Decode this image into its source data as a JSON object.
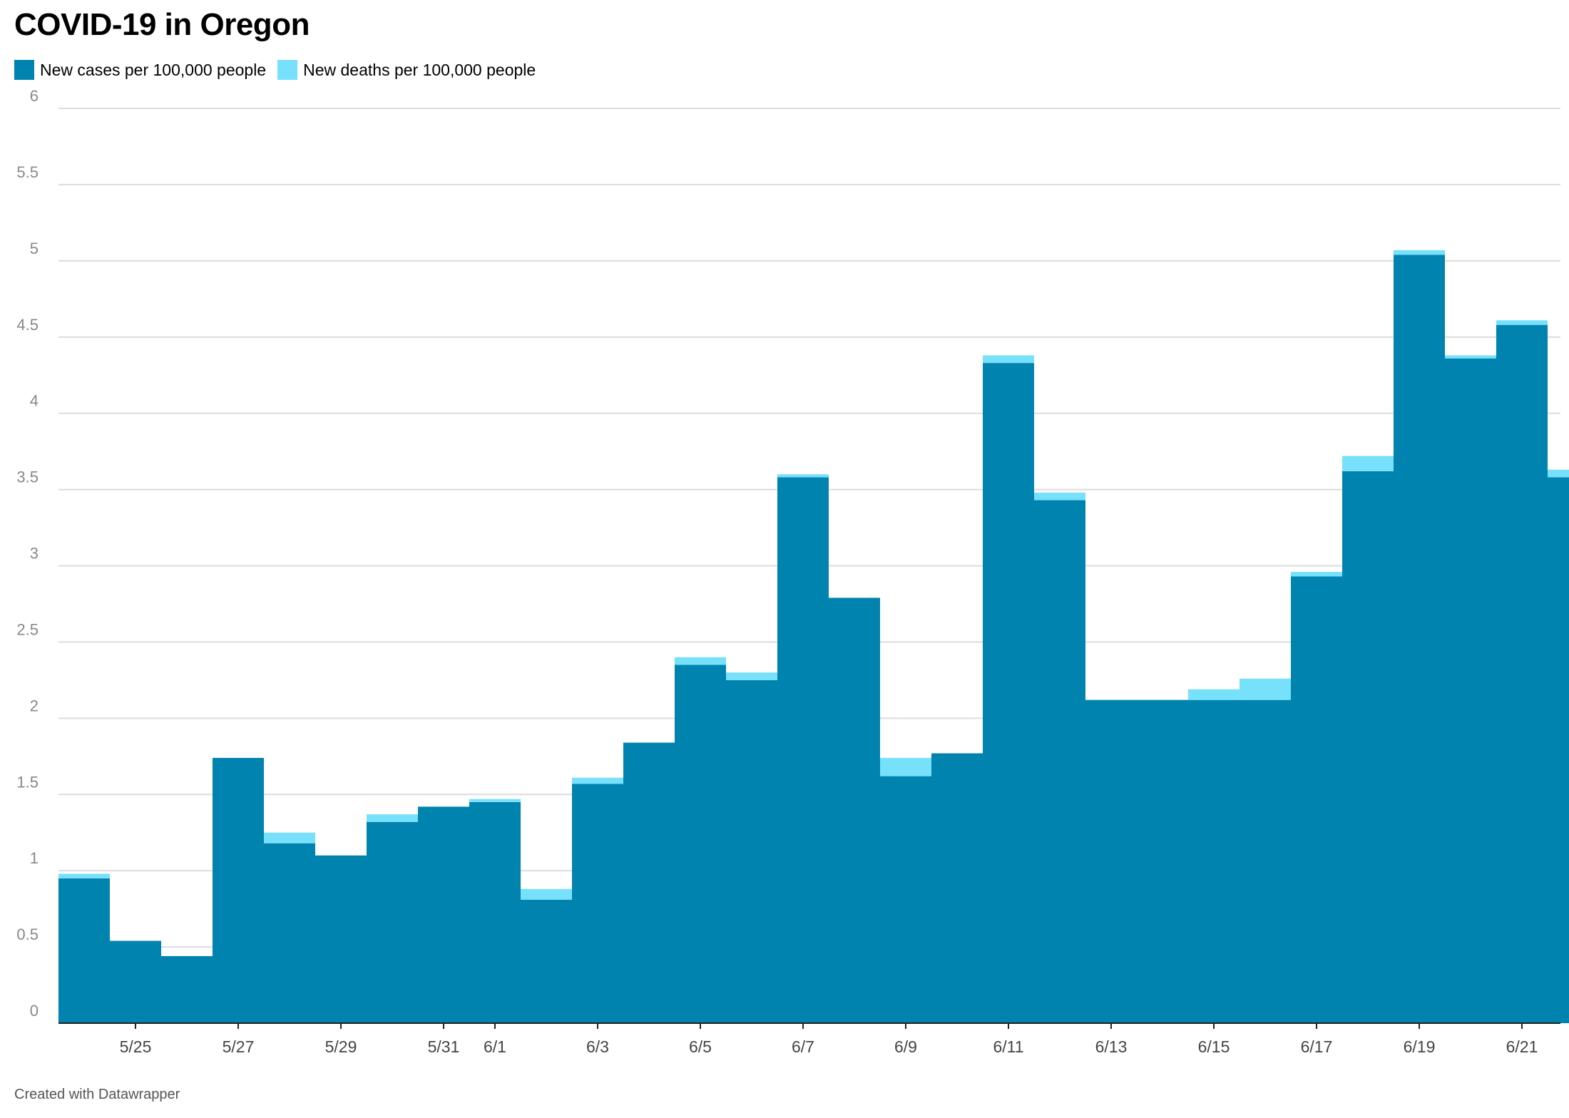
{
  "chart_data": {
    "type": "area",
    "title": "COVID-19 in Oregon",
    "stacked": true,
    "step": true,
    "x": [
      "5/24",
      "5/25",
      "5/26",
      "5/27",
      "5/28",
      "5/29",
      "5/30",
      "5/31",
      "6/1",
      "6/2",
      "6/3",
      "6/4",
      "6/5",
      "6/6",
      "6/7",
      "6/8",
      "6/9",
      "6/10",
      "6/11",
      "6/12",
      "6/13",
      "6/14",
      "6/15",
      "6/16",
      "6/17",
      "6/18",
      "6/19",
      "6/20",
      "6/21",
      "6/22"
    ],
    "x_ticks": [
      "5/25",
      "5/27",
      "5/29",
      "5/31",
      "6/1",
      "6/3",
      "6/5",
      "6/7",
      "6/9",
      "6/11",
      "6/13",
      "6/15",
      "6/17",
      "6/19",
      "6/21"
    ],
    "series": [
      {
        "name": "New cases per 100,000 people",
        "color": "#0083ae",
        "values": [
          0.95,
          0.54,
          0.44,
          1.74,
          1.18,
          1.1,
          1.32,
          1.42,
          1.45,
          0.81,
          1.57,
          1.84,
          2.35,
          2.25,
          3.58,
          2.79,
          1.62,
          1.77,
          4.33,
          3.43,
          2.12,
          2.12,
          2.12,
          2.12,
          2.93,
          3.62,
          5.04,
          4.36,
          4.58,
          3.58
        ]
      },
      {
        "name": "New deaths per 100,000 people",
        "color": "#77e0fb",
        "values": [
          0.03,
          0.0,
          0.0,
          0.0,
          0.07,
          0.0,
          0.05,
          0.0,
          0.02,
          0.07,
          0.04,
          0.0,
          0.05,
          0.05,
          0.02,
          0.0,
          0.12,
          0.0,
          0.05,
          0.05,
          0.0,
          0.0,
          0.07,
          0.14,
          0.03,
          0.1,
          0.03,
          0.02,
          0.03,
          0.05
        ]
      }
    ],
    "y_ticks": [
      0,
      0.5,
      1,
      1.5,
      2,
      2.5,
      3,
      3.5,
      4,
      4.5,
      5,
      5.5,
      6
    ],
    "ylim": [
      0,
      6
    ],
    "grid": true,
    "legend_position": "top-left",
    "xlabel": "",
    "ylabel": ""
  },
  "credit": "Created with Datawrapper"
}
